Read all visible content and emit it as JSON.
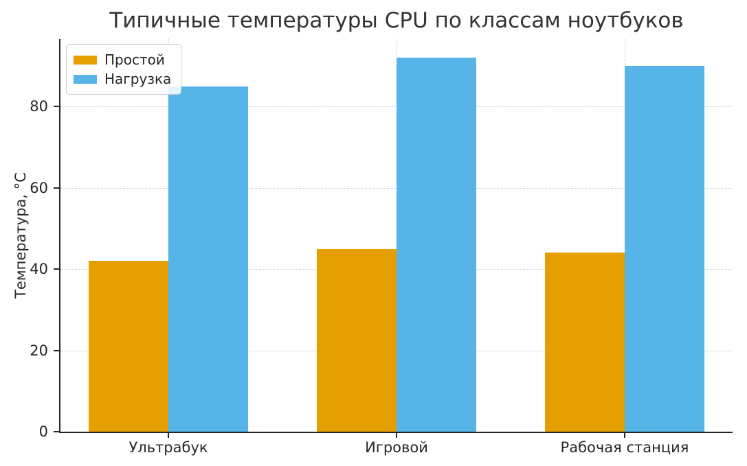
{
  "chart_data": {
    "type": "bar",
    "title": "Типичные температуры CPU по классам ноутбуков",
    "categories": [
      "Ультрабук",
      "Игровой",
      "Рабочая станция"
    ],
    "series": [
      {
        "name": "Простой",
        "color": "#E69F00",
        "values": [
          42,
          45,
          44
        ]
      },
      {
        "name": "Нагрузка",
        "color": "#56B4E9",
        "values": [
          85,
          92,
          90
        ]
      }
    ],
    "xlabel": "",
    "ylabel": "Температура, °C",
    "yticks": [
      0,
      20,
      40,
      60,
      80
    ],
    "ylim": [
      0,
      96.6
    ],
    "bar_width": 0.35,
    "grid": "dotted, horizontal at yticks and vertical at category centers, behind bars",
    "legend_position": "upper left",
    "spines": "left and bottom only",
    "colors": {
      "text": "#262626",
      "title": "#333333",
      "grid": "#c9c9c9",
      "spine": "#262626",
      "background": "#ffffff"
    }
  }
}
